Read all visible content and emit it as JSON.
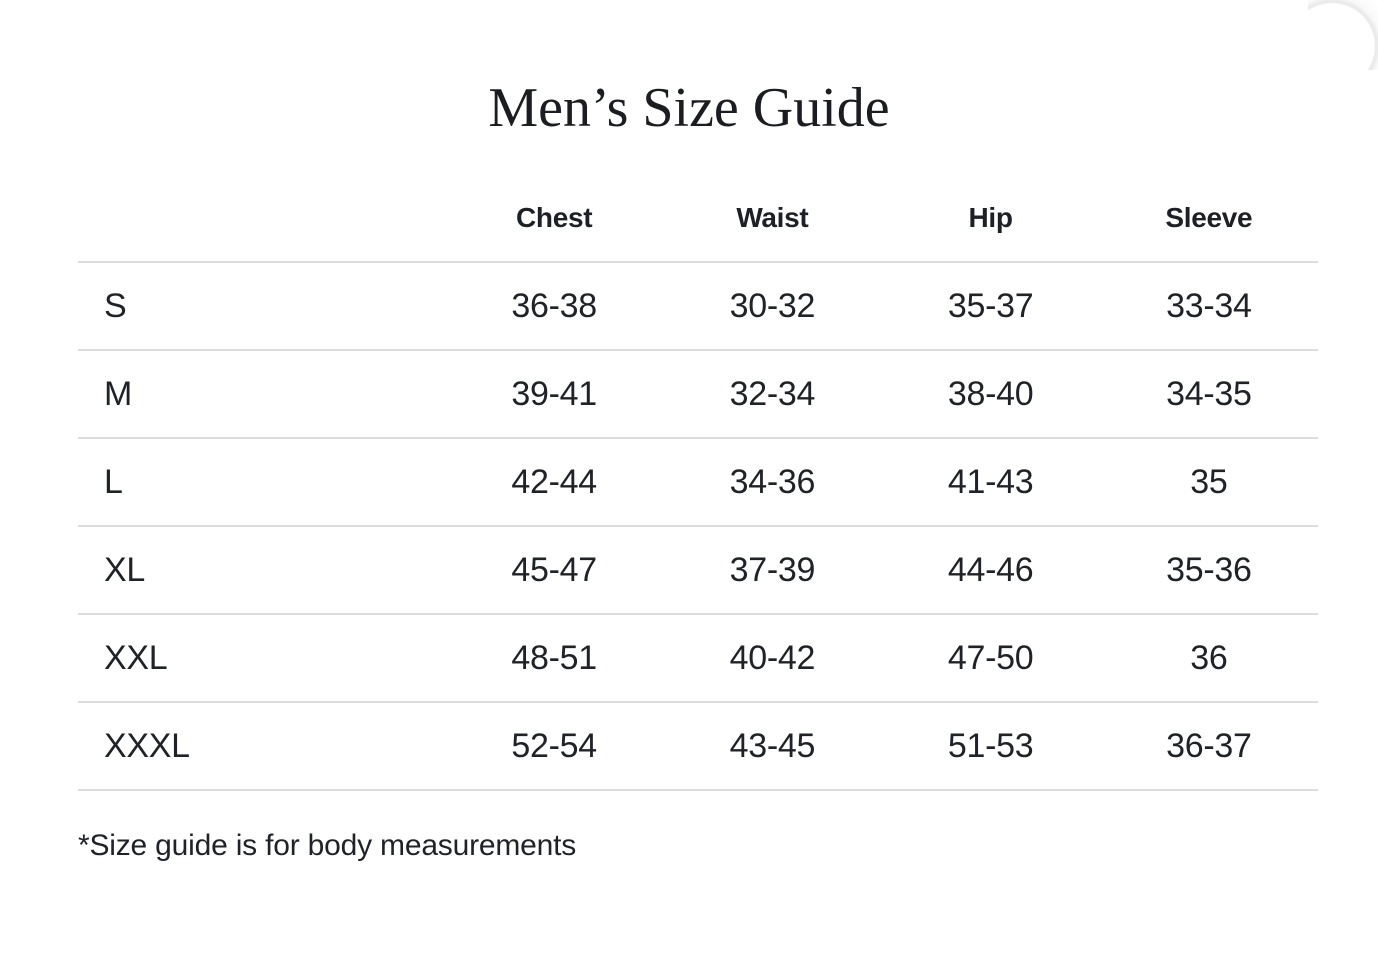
{
  "page": {
    "title": "Men’s Size Guide",
    "footnote": "*Size guide is for body measurements"
  },
  "table": {
    "columns": [
      "Chest",
      "Waist",
      "Hip",
      "Sleeve"
    ],
    "rows": [
      {
        "size": "S",
        "values": [
          "36-38",
          "30-32",
          "35-37",
          "33-34"
        ]
      },
      {
        "size": "M",
        "values": [
          "39-41",
          "32-34",
          "38-40",
          "34-35"
        ]
      },
      {
        "size": "L",
        "values": [
          "42-44",
          "34-36",
          "41-43",
          "35"
        ]
      },
      {
        "size": "XL",
        "values": [
          "45-47",
          "37-39",
          "44-46",
          "35-36"
        ]
      },
      {
        "size": "XXL",
        "values": [
          "48-51",
          "40-42",
          "47-50",
          "36"
        ]
      },
      {
        "size": "XXXL",
        "values": [
          "52-54",
          "43-45",
          "51-53",
          "36-37"
        ]
      }
    ]
  },
  "colors": {
    "background": "#ffffff",
    "text": "#1f2227",
    "hairline": "#dcdcdc",
    "corner_arc": "#ededed"
  }
}
